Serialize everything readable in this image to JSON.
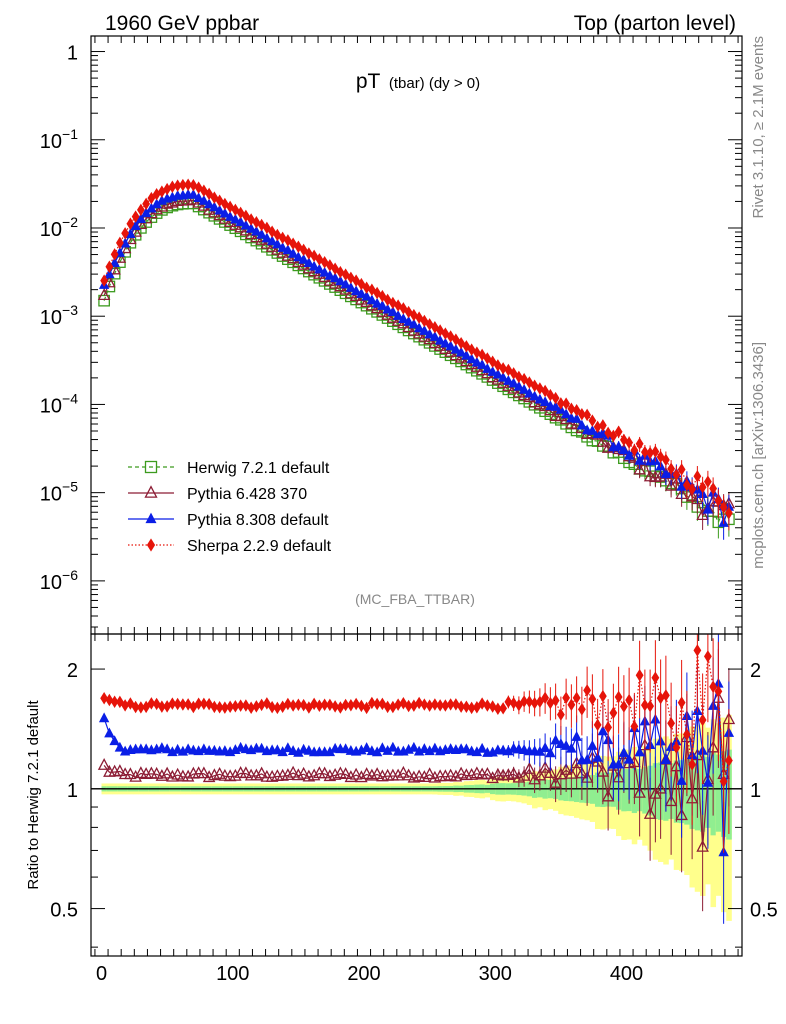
{
  "header": {
    "left": "1960 GeV ppbar",
    "right": "Top (parton level)"
  },
  "side": {
    "rivet": "Rivet 3.1.10, ≥ 2.1M events",
    "mcplots": "mcplots.cern.ch [arXiv:1306.3436]"
  },
  "chart_data": [
    {
      "type": "scatter",
      "title_main": "pT",
      "title_sub": "(tbar) (dy > 0)",
      "analysis": "(MC_FBA_TTBAR)",
      "yscale": "log",
      "xlim": [
        -8,
        488
      ],
      "ylim": [
        2.5e-07,
        1.5
      ],
      "y_ticks": [
        1,
        0.1,
        0.01,
        0.001,
        0.0001,
        1e-05,
        1e-06
      ],
      "y_tick_labels": [
        {
          "base": "1",
          "exp": ""
        },
        {
          "base": "10",
          "exp": "−1"
        },
        {
          "base": "10",
          "exp": "−2"
        },
        {
          "base": "10",
          "exp": "−3"
        },
        {
          "base": "10",
          "exp": "−4"
        },
        {
          "base": "10",
          "exp": "−5"
        },
        {
          "base": "10",
          "exp": "−6"
        }
      ],
      "legend_position": "bottom-left",
      "series": [
        {
          "name": "Herwig 7.2.1 default",
          "color": "#3c9b1e",
          "marker": "open-square",
          "line": "dashed",
          "scale": 1.0
        },
        {
          "name": "Pythia 6.428 370",
          "color": "#8c1c34",
          "marker": "open-triangle",
          "line": "solid",
          "scale": 1.08
        },
        {
          "name": "Pythia 8.308 default",
          "color": "#0a1ee6",
          "marker": "filled-triangle",
          "line": "solid",
          "scale": 1.27
        },
        {
          "name": "Sherpa 2.2.9 default",
          "color": "#e6140a",
          "marker": "filled-diamond",
          "line": "dotted",
          "scale": 1.62
        }
      ],
      "shape": {
        "description_values": "Herwig reference pT distribution, 4 GeV bins from 0 to 480",
        "x_start": 2,
        "x_step": 4,
        "n_bins": 120,
        "peak_x": 70,
        "peak_y": 0.019,
        "first_y": 0.0015
      }
    },
    {
      "type": "scatter",
      "ylabel": "Ratio to Herwig 7.2.1 default",
      "xlim": [
        -8,
        488
      ],
      "ylim": [
        0.38,
        2.45
      ],
      "yscale": "log",
      "x_ticks": [
        0,
        100,
        200,
        300,
        400
      ],
      "y_ticks": [
        0.5,
        1,
        2
      ],
      "y_tick_labels": [
        "0.5",
        "1",
        "2"
      ],
      "reference_line": 1.0,
      "band_colors": {
        "inner": "#90ee90",
        "outer": "#ffff8c"
      },
      "ratios": {
        "pythia6": {
          "level": 1.08,
          "first": 1.14
        },
        "pythia8": {
          "level": 1.25,
          "first": 1.5
        },
        "sherpa": {
          "level": 1.62,
          "first": 1.7
        }
      }
    }
  ]
}
